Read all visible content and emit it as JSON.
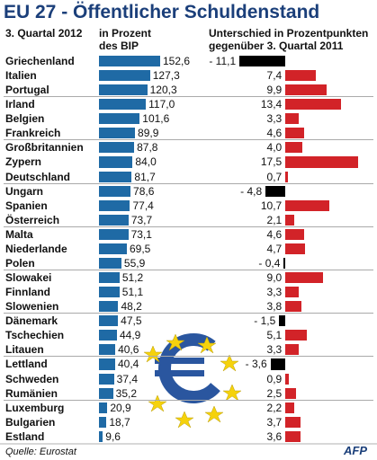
{
  "chart_data": {
    "type": "bar",
    "title": "EU 27 - Öffentlicher Schuldenstand",
    "subtitle": "3. Quartal 2012",
    "source": "Quelle: Eurostat",
    "logo": "AFP",
    "categories": [
      "Griechenland",
      "Italien",
      "Portugal",
      "Irland",
      "Belgien",
      "Frankreich",
      "Großbritannien",
      "Zypern",
      "Deutschland",
      "Ungarn",
      "Spanien",
      "Österreich",
      "Malta",
      "Niederlande",
      "Polen",
      "Slowakei",
      "Finnland",
      "Slowenien",
      "Dänemark",
      "Tschechien",
      "Litauen",
      "Lettland",
      "Schweden",
      "Rumänien",
      "Luxemburg",
      "Bulgarien",
      "Estland"
    ],
    "series": [
      {
        "name": "in Prozent des BIP",
        "color": "#1f6aa5",
        "xlim": [
          0,
          160
        ],
        "values": [
          152.6,
          127.3,
          120.3,
          117.0,
          101.6,
          89.9,
          87.8,
          84.0,
          81.7,
          78.6,
          77.4,
          73.7,
          73.1,
          69.5,
          55.9,
          51.2,
          51.1,
          48.2,
          47.5,
          44.9,
          40.6,
          40.4,
          37.4,
          35.2,
          20.9,
          18.7,
          9.6
        ],
        "value_labels": [
          "152,6",
          "127,3",
          "120,3",
          "117,0",
          "101,6",
          "89,9",
          "87,8",
          "84,0",
          "81,7",
          "78,6",
          "77,4",
          "73,7",
          "73,1",
          "69,5",
          "55,9",
          "51,2",
          "51,1",
          "48,2",
          "47,5",
          "44,9",
          "40,6",
          "40,4",
          "37,4",
          "35,2",
          "20,9",
          "18,7",
          "9,6"
        ]
      },
      {
        "name": "Unterschied in Prozentpunkten gegenüber 3. Quartal 2011",
        "color": "#d22328",
        "negative_color": "#000000",
        "xlim": [
          -12,
          18
        ],
        "values": [
          -11.1,
          7.4,
          9.9,
          13.4,
          3.3,
          4.6,
          4.0,
          17.5,
          0.7,
          -4.8,
          10.7,
          2.1,
          4.6,
          4.7,
          -0.4,
          9.0,
          3.3,
          3.8,
          -1.5,
          5.1,
          3.3,
          -3.6,
          0.9,
          2.5,
          2.2,
          3.7,
          3.6
        ],
        "value_labels": [
          "- 11,1",
          "7,4",
          "9,9",
          "13,4",
          "3,3",
          "4,6",
          "4,0",
          "17,5",
          "0,7",
          "- 4,8",
          "10,7",
          "2,1",
          "4,6",
          "4,7",
          "- 0,4",
          "9,0",
          "3,3",
          "3,8",
          "- 1,5",
          "5,1",
          "3,3",
          "- 3,6",
          "0,9",
          "2,5",
          "2,2",
          "3,7",
          "3,6"
        ]
      }
    ]
  }
}
